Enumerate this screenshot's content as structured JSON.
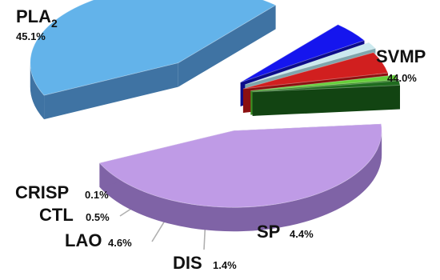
{
  "chart_data": {
    "type": "pie",
    "style": "3d-exploded",
    "legend": "none",
    "slices": [
      {
        "name": "PLA",
        "subscript": "2",
        "value": 45.1,
        "value_label": "45.1%",
        "color": "#bf9be6",
        "side_color": "#7f63a6"
      },
      {
        "name": "SVMP",
        "value": 44.0,
        "value_label": "44.0%",
        "color": "#63b3ea",
        "side_color": "#3f73a3"
      },
      {
        "name": "SP",
        "value": 4.4,
        "value_label": "4.4%",
        "color": "#1515ee",
        "side_color": "#0c0c8a"
      },
      {
        "name": "DIS",
        "value": 1.4,
        "value_label": "1.4%",
        "color": "#cbe9ee",
        "side_color": "#7fa6ad"
      },
      {
        "name": "LAO",
        "value": 4.6,
        "value_label": "4.6%",
        "color": "#d11f1f",
        "side_color": "#8b1010"
      },
      {
        "name": "CTL",
        "value": 0.5,
        "value_label": "0.5%",
        "color": "#66cf3a",
        "side_color": "#3a8c22"
      },
      {
        "name": "CRISP",
        "value": 0.1,
        "value_label": "0.1%",
        "color": "#1f6b1f",
        "side_color": "#124412"
      }
    ]
  }
}
